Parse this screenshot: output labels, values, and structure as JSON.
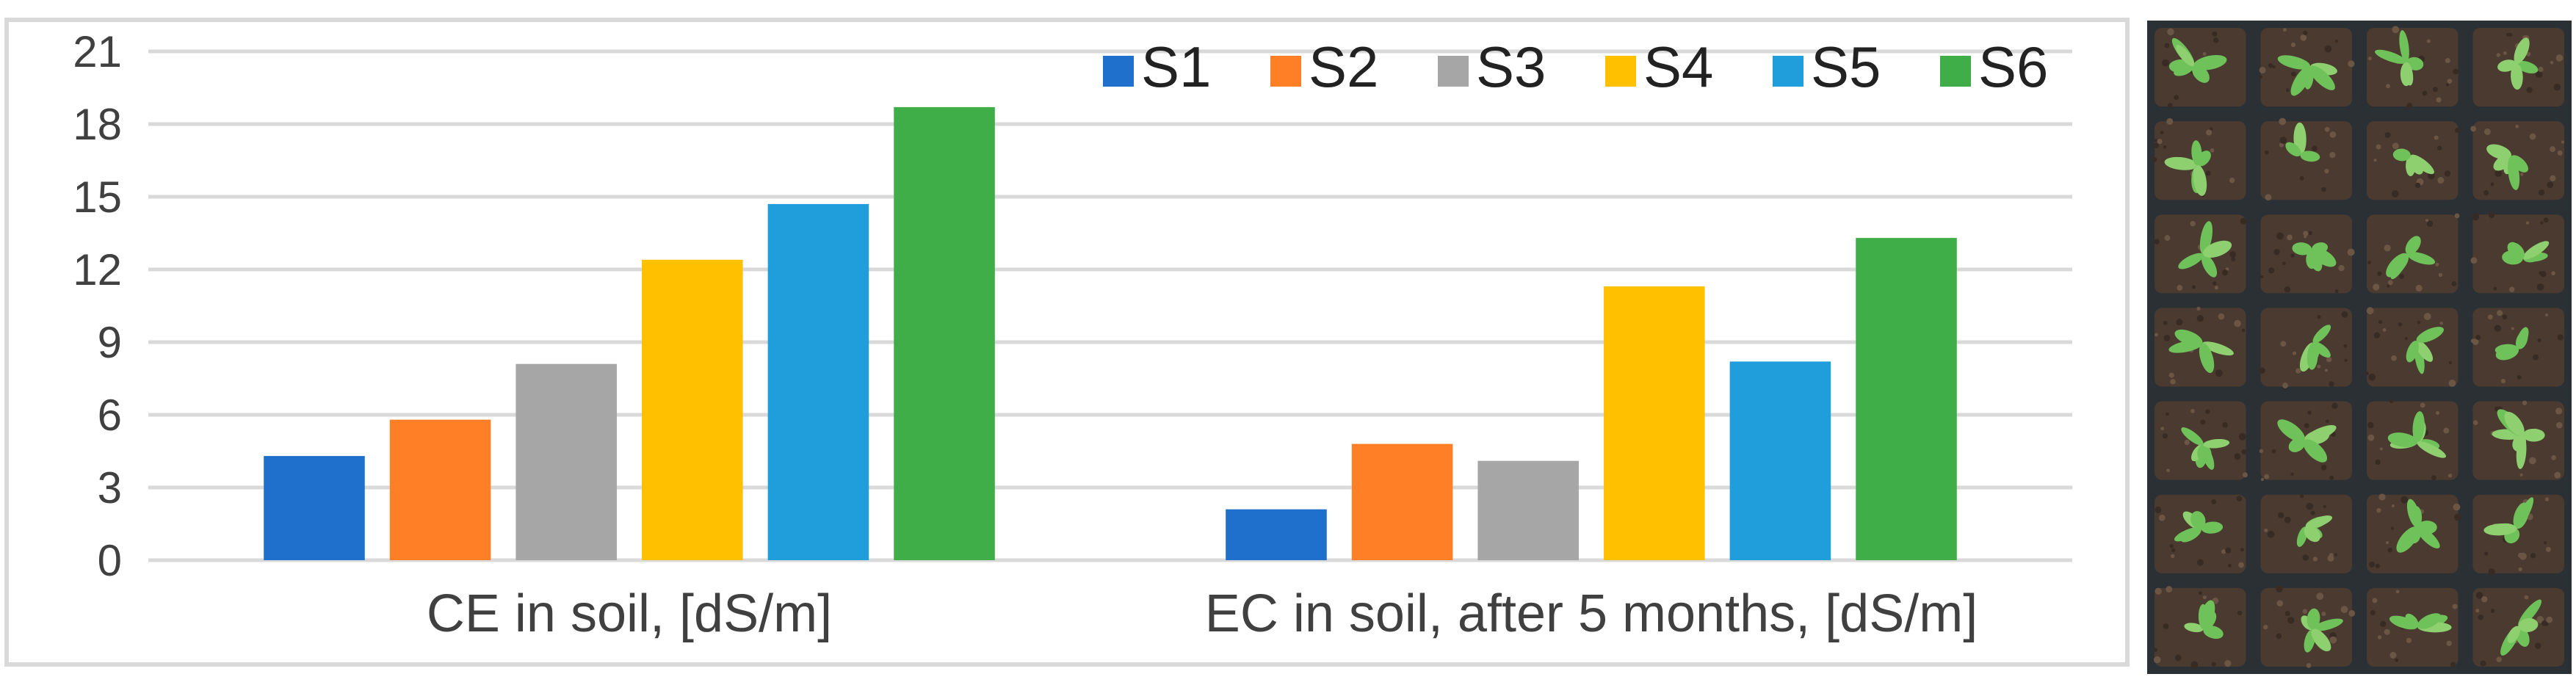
{
  "chart_data": {
    "type": "bar",
    "categories": [
      "CE in soil, [dS/m]",
      "EC in soil, after 5 months, [dS/m]"
    ],
    "series": [
      {
        "name": "S1",
        "color": "#1f6fcc",
        "values": [
          4.3,
          2.1
        ]
      },
      {
        "name": "S2",
        "color": "#ff7f27",
        "values": [
          5.8,
          4.8
        ]
      },
      {
        "name": "S3",
        "color": "#a6a6a6",
        "values": [
          8.1,
          4.1
        ]
      },
      {
        "name": "S4",
        "color": "#ffc000",
        "values": [
          12.4,
          11.3
        ]
      },
      {
        "name": "S5",
        "color": "#1f9edb",
        "values": [
          14.7,
          8.2
        ]
      },
      {
        "name": "S6",
        "color": "#3fae49",
        "values": [
          18.7,
          13.3
        ]
      }
    ],
    "ylim": [
      0,
      21
    ],
    "yticks": [
      0,
      3,
      6,
      9,
      12,
      15,
      18,
      21
    ],
    "grid": true,
    "legend": "top-right",
    "title": "",
    "xlabel": "",
    "ylabel": ""
  }
}
